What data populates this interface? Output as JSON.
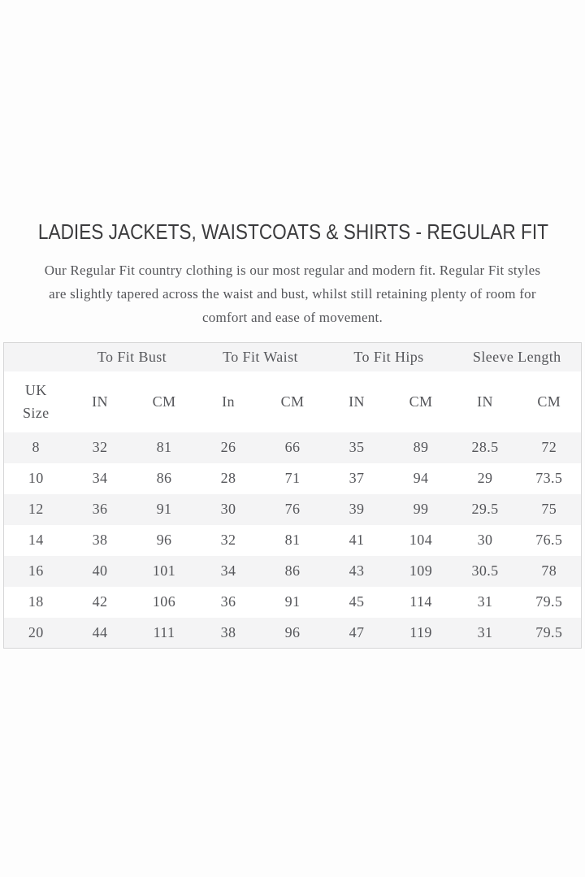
{
  "header": {
    "title": "LADIES JACKETS, WAISTCOATS & SHIRTS - REGULAR FIT"
  },
  "description": {
    "lines": [
      "Our Regular Fit country clothing is our most regular and modern fit. Regular Fit styles",
      "are slightly tapered across the waist and bust, whilst still retaining plenty of room for",
      "comfort and ease of movement."
    ]
  },
  "size_table": {
    "group_headers": [
      "",
      "To Fit Bust",
      "To Fit Waist",
      "To Fit Hips",
      "Sleeve Length"
    ],
    "unit_headers": [
      "UK Size",
      "IN",
      "CM",
      "In",
      "CM",
      "IN",
      "CM",
      "IN",
      "CM"
    ],
    "rows": [
      [
        "8",
        "32",
        "81",
        "26",
        "66",
        "35",
        "89",
        "28.5",
        "72"
      ],
      [
        "10",
        "34",
        "86",
        "28",
        "71",
        "37",
        "94",
        "29",
        "73.5"
      ],
      [
        "12",
        "36",
        "91",
        "30",
        "76",
        "39",
        "99",
        "29.5",
        "75"
      ],
      [
        "14",
        "38",
        "96",
        "32",
        "81",
        "41",
        "104",
        "30",
        "76.5"
      ],
      [
        "16",
        "40",
        "101",
        "34",
        "86",
        "43",
        "109",
        "30.5",
        "78"
      ],
      [
        "18",
        "42",
        "106",
        "36",
        "91",
        "45",
        "114",
        "31",
        "79.5"
      ],
      [
        "20",
        "44",
        "111",
        "38",
        "96",
        "47",
        "119",
        "31",
        "79.5"
      ]
    ]
  },
  "colors": {
    "stripe": "#f4f4f5",
    "border": "#d6d6d7",
    "text": "#55565a",
    "title": "#3b3b3d"
  }
}
